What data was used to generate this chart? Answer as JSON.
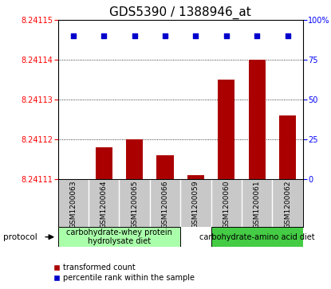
{
  "title": "GDS5390 / 1388946_at",
  "samples": [
    "GSM1200063",
    "GSM1200064",
    "GSM1200065",
    "GSM1200066",
    "GSM1200059",
    "GSM1200060",
    "GSM1200061",
    "GSM1200062"
  ],
  "bar_values": [
    8.24111,
    8.241118,
    8.24112,
    8.241116,
    8.241111,
    8.241135,
    8.24114,
    8.241126
  ],
  "percentile_values": [
    90,
    90,
    90,
    90,
    90,
    90,
    90,
    90
  ],
  "ylim_left": [
    8.24111,
    8.24115
  ],
  "ylim_right": [
    0,
    100
  ],
  "yticks_left": [
    8.24111,
    8.24112,
    8.24113,
    8.24114,
    8.24115
  ],
  "yticks_right": [
    0,
    25,
    50,
    75,
    100
  ],
  "ytick_right_labels": [
    "0",
    "25",
    "50",
    "75",
    "100%"
  ],
  "bar_color": "#AA0000",
  "percentile_color": "#0000CC",
  "group1_label": "carbohydrate-whey protein\nhydrolysate diet",
  "group2_label": "carbohydrate-amino acid diet",
  "group1_color": "#AAFFAA",
  "group2_color": "#44CC44",
  "protocol_label": "protocol",
  "legend_bar_label": "transformed count",
  "legend_pct_label": "percentile rank within the sample",
  "sample_bg_color": "#C8C8C8",
  "plot_bg_color": "#FFFFFF",
  "title_fontsize": 11,
  "tick_label_fontsize": 7,
  "sample_label_fontsize": 6.5,
  "legend_fontsize": 7,
  "group_label_fontsize": 7
}
